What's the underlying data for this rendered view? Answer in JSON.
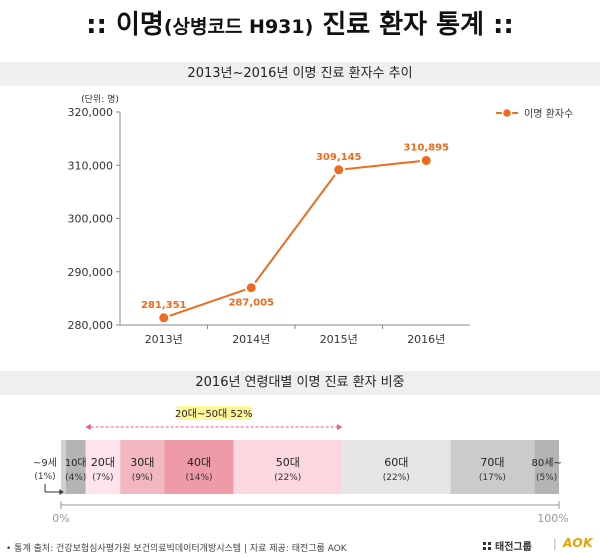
{
  "title_main": ":: 이명",
  "title_sub": "(상병코드 H931)",
  "title_end": "진료 환자 통계 ::",
  "section1_label": "2013년~2016년 이명 진료 환자수 추이",
  "section2_label": "2016년 연령대별 이명 진료 환자 비중",
  "chart_data": [
    {
      "type": "line",
      "title": "2013년~2016년 이명 진료 환자수 추이",
      "unit_label": "(단위: 명)",
      "categories": [
        "2013년",
        "2014년",
        "2015년",
        "2016년"
      ],
      "series": [
        {
          "name": "이명 환자수",
          "values": [
            281351,
            287005,
            309145,
            310895
          ],
          "color": "#f06a1e"
        }
      ],
      "data_labels": [
        "281,351",
        "287,005",
        "309,145",
        "310,895"
      ],
      "ylim": [
        280000,
        320000
      ],
      "y_ticks": [
        280000,
        290000,
        300000,
        310000,
        320000
      ],
      "y_tick_labels": [
        "280,000",
        "290,000",
        "300,000",
        "310,000",
        "320,000"
      ],
      "grid": false,
      "legend": "top-right"
    },
    {
      "type": "bar",
      "orientation": "horizontal-stacked",
      "title": "2016년 연령대별 이명 진료 환자 비중",
      "segments": [
        {
          "label": "~9세",
          "pct_label": "(1%)",
          "value": 1,
          "color": "#ffffff"
        },
        {
          "label": "10대",
          "pct_label": "(4%)",
          "value": 4,
          "color": "#b4b4b4"
        },
        {
          "label": "20대",
          "pct_label": "(7%)",
          "value": 7,
          "color": "#fde4ea"
        },
        {
          "label": "30대",
          "pct_label": "(9%)",
          "value": 9,
          "color": "#f2b7c1"
        },
        {
          "label": "40대",
          "pct_label": "(14%)",
          "value": 14,
          "color": "#ee9ba7"
        },
        {
          "label": "50대",
          "pct_label": "(22%)",
          "value": 22,
          "color": "#fbd7df"
        },
        {
          "label": "60대",
          "pct_label": "(22%)",
          "value": 22,
          "color": "#e6e6e6"
        },
        {
          "label": "70대",
          "pct_label": "(17%)",
          "value": 17,
          "color": "#cbcbcb"
        },
        {
          "label": "80세~",
          "pct_label": "(5%)",
          "value": 5,
          "color": "#b4b4b4"
        }
      ],
      "annotation": "20대~50대 52%",
      "axis_start_label": "0%",
      "axis_end_label": "100%"
    }
  ],
  "footer": {
    "source": "• 통계 출처: 건강보험심사평가원 보건의료빅데이터개방시스템  |  자료 제공: 태전그룹 AOK",
    "logo1": "태전그룹",
    "logo_sep": "|",
    "logo2": "AOK"
  }
}
